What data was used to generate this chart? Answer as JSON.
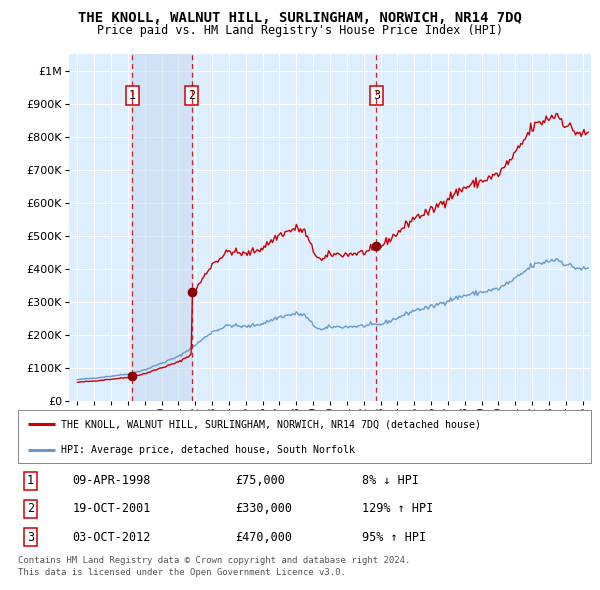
{
  "title": "THE KNOLL, WALNUT HILL, SURLINGHAM, NORWICH, NR14 7DQ",
  "subtitle": "Price paid vs. HM Land Registry's House Price Index (HPI)",
  "sales": [
    {
      "num": 1,
      "date_label": "09-APR-1998",
      "date_x": 1998.27,
      "price": 75000,
      "pct": "8%",
      "dir": "↓"
    },
    {
      "num": 2,
      "date_label": "19-OCT-2001",
      "date_x": 2001.8,
      "price": 330000,
      "pct": "129%",
      "dir": "↑"
    },
    {
      "num": 3,
      "date_label": "03-OCT-2012",
      "date_x": 2012.75,
      "price": 470000,
      "pct": "95%",
      "dir": "↑"
    }
  ],
  "legend_line1": "THE KNOLL, WALNUT HILL, SURLINGHAM, NORWICH, NR14 7DQ (detached house)",
  "legend_line2": "HPI: Average price, detached house, South Norfolk",
  "footer1": "Contains HM Land Registry data © Crown copyright and database right 2024.",
  "footer2": "This data is licensed under the Open Government Licence v3.0.",
  "red_color": "#cc0000",
  "blue_color": "#6699cc",
  "bg_color": "#ddeeff",
  "grid_color": "#ffffff",
  "ylim": [
    0,
    1050000
  ],
  "xlim_start": 1994.5,
  "xlim_end": 2025.5,
  "sale_region_color": "#c8d8f0",
  "hpi_waypoints": {
    "1995.0": 65000,
    "1996.0": 70000,
    "1997.0": 76000,
    "1998.0": 82000,
    "1999.0": 95000,
    "2000.0": 115000,
    "2001.0": 135000,
    "2002.0": 170000,
    "2003.0": 210000,
    "2004.0": 230000,
    "2005.0": 225000,
    "2006.0": 235000,
    "2007.0": 255000,
    "2008.0": 265000,
    "2008.5": 260000,
    "2009.0": 230000,
    "2009.5": 215000,
    "2010.0": 225000,
    "2011.0": 225000,
    "2012.0": 228000,
    "2013.0": 232000,
    "2014.0": 252000,
    "2015.0": 275000,
    "2016.0": 285000,
    "2017.0": 305000,
    "2018.0": 320000,
    "2019.0": 330000,
    "2020.0": 340000,
    "2021.0": 370000,
    "2022.0": 410000,
    "2023.0": 425000,
    "2023.5": 430000,
    "2024.0": 415000,
    "2024.5": 405000,
    "2025.0": 400000
  }
}
